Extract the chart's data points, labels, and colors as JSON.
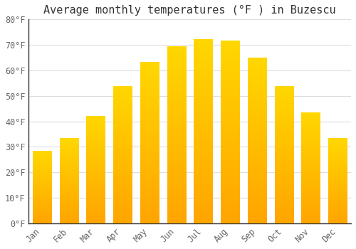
{
  "title": "Average monthly temperatures (°F ) in Buzescu",
  "months": [
    "Jan",
    "Feb",
    "Mar",
    "Apr",
    "May",
    "Jun",
    "Jul",
    "Aug",
    "Sep",
    "Oct",
    "Nov",
    "Dec"
  ],
  "values": [
    28.4,
    33.4,
    42.1,
    53.6,
    63.1,
    69.4,
    72.1,
    71.6,
    64.9,
    53.6,
    43.5,
    33.4
  ],
  "bar_color_top": "#FFD700",
  "bar_color_bottom": "#FFA500",
  "ylim": [
    0,
    80
  ],
  "yticks": [
    0,
    10,
    20,
    30,
    40,
    50,
    60,
    70,
    80
  ],
  "ytick_labels": [
    "0°F",
    "10°F",
    "20°F",
    "30°F",
    "40°F",
    "50°F",
    "60°F",
    "70°F",
    "80°F"
  ],
  "background_color": "#FFFFFF",
  "grid_color": "#DDDDDD",
  "title_fontsize": 11,
  "tick_fontsize": 8.5,
  "font_family": "monospace",
  "tick_color": "#666666",
  "spine_color": "#333333"
}
